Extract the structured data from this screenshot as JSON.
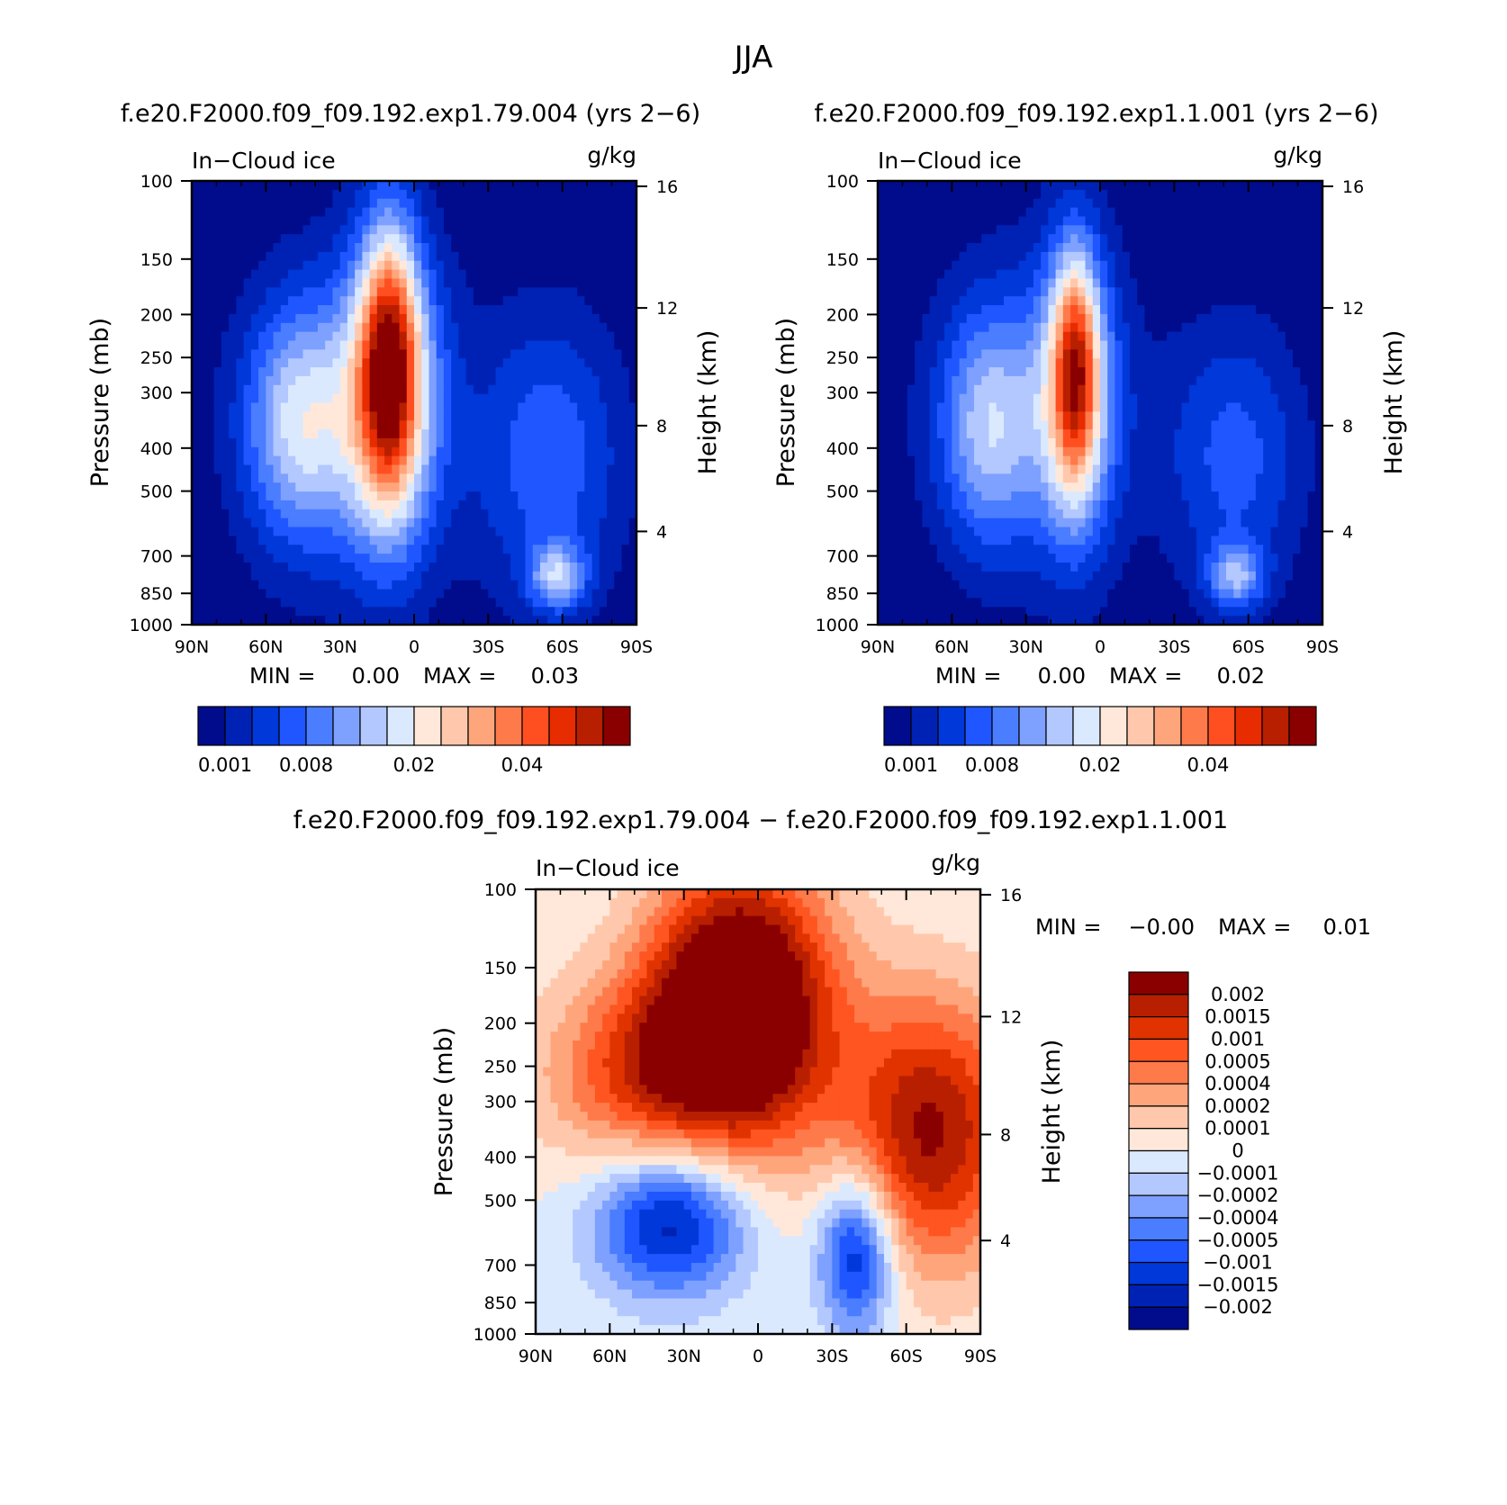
{
  "figure": {
    "title": "JJA"
  },
  "colors": {
    "seq": [
      "#000c8c",
      "#0022b4",
      "#0038d9",
      "#1f56ff",
      "#4a7dff",
      "#7ea0ff",
      "#b2c8ff",
      "#dbe9ff",
      "#ffe8d9",
      "#ffc8ac",
      "#ffa57c",
      "#ff7a4a",
      "#ff4f20",
      "#e62c00",
      "#b81f00",
      "#8a0000"
    ],
    "div": [
      "#8a0000",
      "#b81f00",
      "#e03300",
      "#ff5520",
      "#ff7a4a",
      "#ffa57c",
      "#ffc8ac",
      "#ffe8d9",
      "#dbe9ff",
      "#b2c8ff",
      "#7ea0ff",
      "#4a7dff",
      "#1f56ff",
      "#0038d9",
      "#0022b4",
      "#000c8c"
    ]
  },
  "chart_data": [
    {
      "type": "heatmap",
      "id": "panel-a",
      "title": "f.e20.F2000.f09_f09.192.exp1.79.004 (yrs 2−6)",
      "left_label": "In−Cloud ice",
      "right_label": "g/kg",
      "xlabel": "",
      "ylabel": "Pressure (mb)",
      "y2label": "Height (km)",
      "x_ticks": [
        "90N",
        "60N",
        "30N",
        "0",
        "30S",
        "60S",
        "90S"
      ],
      "x_range": [
        90,
        -90
      ],
      "y_ticks": [
        100,
        150,
        200,
        250,
        300,
        400,
        500,
        700,
        850,
        1000
      ],
      "y_range": [
        100,
        1000
      ],
      "y_scale": "log",
      "y2_ticks": [
        16,
        12,
        8,
        4
      ],
      "min_max": {
        "min_label": "MIN =",
        "min_value": "0.00",
        "max_label": "MAX =",
        "max_value": "0.03"
      },
      "colorbar": {
        "orientation": "horizontal",
        "labels": [
          "0.001",
          "0.008",
          "0.02",
          "0.04"
        ]
      },
      "blobs": [
        {
          "lat": 30,
          "p": 350,
          "slat": 30,
          "sp": 0.62,
          "v": 1.6
        },
        {
          "lat": -55,
          "p": 420,
          "slat": 22,
          "sp": 0.55,
          "v": 2.4
        },
        {
          "lat": 47,
          "p": 350,
          "slat": 15,
          "sp": 0.42,
          "v": 3.6
        },
        {
          "lat": 10,
          "p": 300,
          "slat": 14,
          "sp": 0.58,
          "v": 5.0
        },
        {
          "lat": 10,
          "p": 250,
          "slat": 8,
          "sp": 0.48,
          "v": 5.5
        },
        {
          "lat": -58,
          "p": 780,
          "slat": 8,
          "sp": 0.12,
          "v": 3.5
        }
      ]
    },
    {
      "type": "heatmap",
      "id": "panel-b",
      "title": "f.e20.F2000.f09_f09.192.exp1.1.001 (yrs 2−6)",
      "left_label": "In−Cloud ice",
      "right_label": "g/kg",
      "xlabel": "",
      "ylabel": "Pressure (mb)",
      "y2label": "Height (km)",
      "x_ticks": [
        "90N",
        "60N",
        "30N",
        "0",
        "30S",
        "60S",
        "90S"
      ],
      "x_range": [
        90,
        -90
      ],
      "y_ticks": [
        100,
        150,
        200,
        250,
        300,
        400,
        500,
        700,
        850,
        1000
      ],
      "y_range": [
        100,
        1000
      ],
      "y_scale": "log",
      "y2_ticks": [
        16,
        12,
        8,
        4
      ],
      "min_max": {
        "min_label": "MIN =",
        "min_value": "0.00",
        "max_label": "MAX =",
        "max_value": "0.02"
      },
      "colorbar": {
        "orientation": "horizontal",
        "labels": [
          "0.001",
          "0.008",
          "0.02",
          "0.04"
        ]
      },
      "blobs": [
        {
          "lat": 28,
          "p": 330,
          "slat": 30,
          "sp": 0.62,
          "v": 1.6
        },
        {
          "lat": -55,
          "p": 420,
          "slat": 20,
          "sp": 0.5,
          "v": 2.2
        },
        {
          "lat": 45,
          "p": 360,
          "slat": 14,
          "sp": 0.42,
          "v": 3.2
        },
        {
          "lat": 10,
          "p": 300,
          "slat": 11,
          "sp": 0.55,
          "v": 4.6
        },
        {
          "lat": 10,
          "p": 260,
          "slat": 6,
          "sp": 0.4,
          "v": 4.4
        },
        {
          "lat": -55,
          "p": 780,
          "slat": 8,
          "sp": 0.12,
          "v": 3.2
        }
      ]
    },
    {
      "type": "heatmap",
      "id": "panel-c",
      "title": "f.e20.F2000.f09_f09.192.exp1.79.004 − f.e20.F2000.f09_f09.192.exp1.1.001",
      "left_label": "In−Cloud ice",
      "right_label": "g/kg",
      "xlabel": "",
      "ylabel": "Pressure (mb)",
      "y2label": "Height (km)",
      "x_ticks": [
        "90N",
        "60N",
        "30N",
        "0",
        "30S",
        "60S",
        "90S"
      ],
      "x_range": [
        90,
        -90
      ],
      "y_ticks": [
        100,
        150,
        200,
        250,
        300,
        400,
        500,
        700,
        850,
        1000
      ],
      "y_range": [
        100,
        1000
      ],
      "y_scale": "log",
      "y2_ticks": [
        16,
        12,
        8,
        4
      ],
      "min_max": {
        "min_label": "MIN =",
        "min_value": "−0.00",
        "max_label": "MAX =",
        "max_value": "0.01"
      },
      "colorbar": {
        "orientation": "vertical",
        "labels": [
          "0.002",
          "0.0015",
          "0.001",
          "0.0005",
          "0.0004",
          "0.0002",
          "0.0001",
          "0",
          "−0.0001",
          "−0.0002",
          "−0.0004",
          "−0.0005",
          "−0.001",
          "−0.0015",
          "−0.002"
        ]
      },
      "blobs": [
        {
          "lat": 7,
          "p": 180,
          "slat": 26,
          "sp": 0.5,
          "v": 9.0
        },
        {
          "lat": 45,
          "p": 260,
          "slat": 30,
          "sp": 0.35,
          "v": 4.0
        },
        {
          "lat": -70,
          "p": 350,
          "slat": 26,
          "sp": 0.5,
          "v": 6.0
        },
        {
          "lat": 35,
          "p": 550,
          "slat": 22,
          "sp": 0.28,
          "v": -5.0
        },
        {
          "lat": -40,
          "p": 650,
          "slat": 11,
          "sp": 0.3,
          "v": -5.0
        }
      ]
    }
  ]
}
